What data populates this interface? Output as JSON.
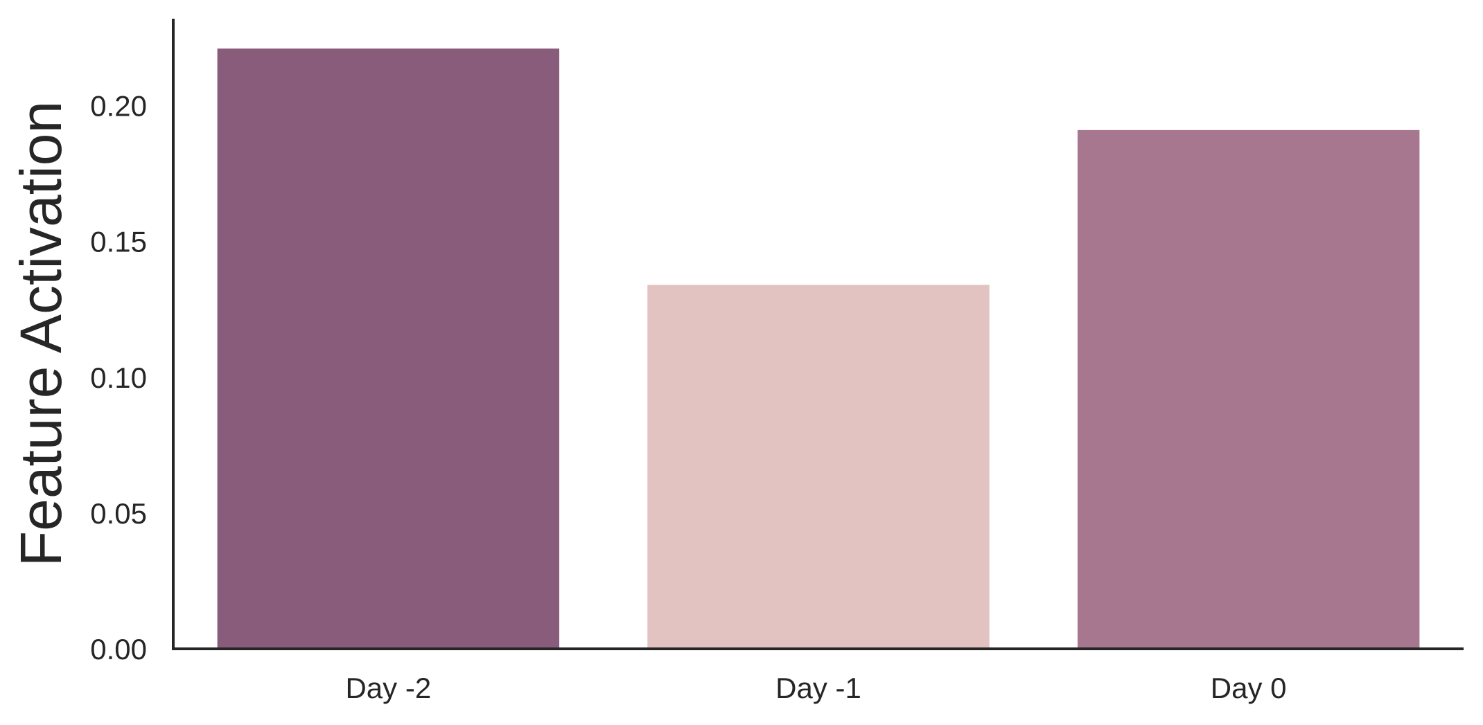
{
  "chart_data": {
    "type": "bar",
    "title": "",
    "xlabel": "",
    "ylabel": "Feature Activation",
    "categories": [
      "Day -2",
      "Day -1",
      "Day 0"
    ],
    "values": [
      0.221,
      0.134,
      0.191
    ],
    "bar_colors": [
      "#8a5c7c",
      "#e2c3c1",
      "#a7768f"
    ],
    "ylim": [
      0,
      0.232
    ],
    "yticks": [
      0.0,
      0.05,
      0.1,
      0.15,
      0.2
    ],
    "ytick_labels": [
      "0.00",
      "0.05",
      "0.10",
      "0.15",
      "0.20"
    ],
    "grid": false,
    "legend": "none"
  }
}
